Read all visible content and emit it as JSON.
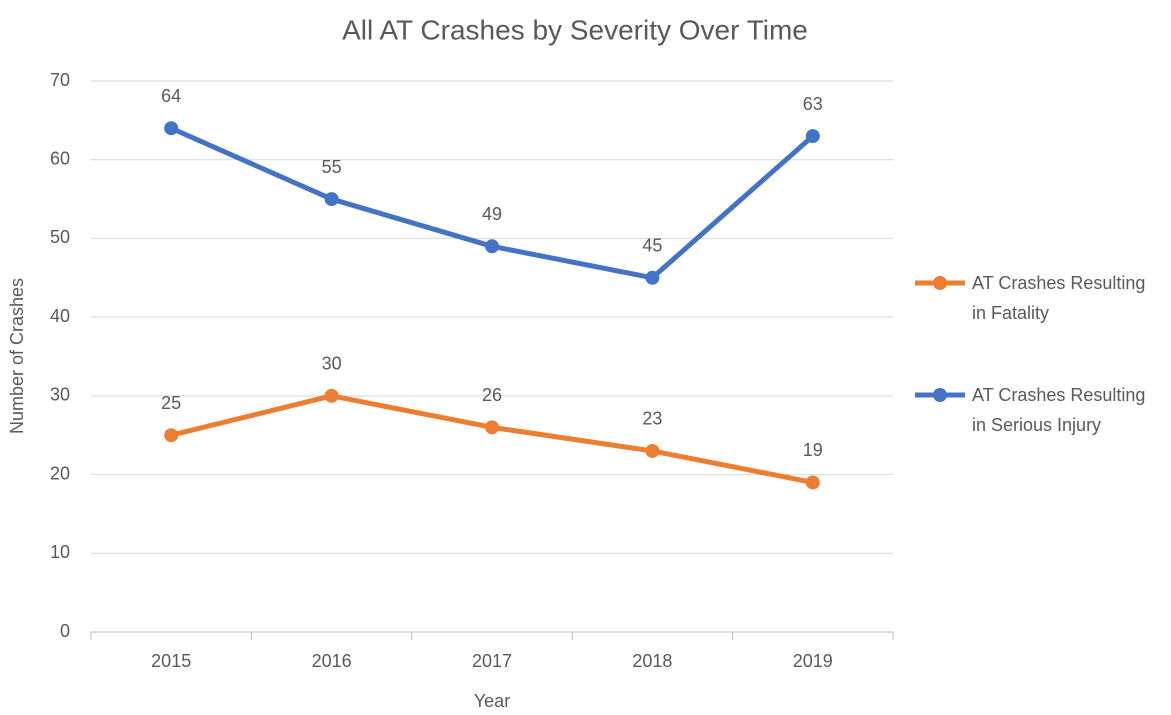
{
  "chart_data": {
    "type": "line",
    "title": "All AT Crashes by Severity Over Time",
    "x_label": "Year",
    "y_label": "Number of Crashes",
    "categories": [
      "2015",
      "2016",
      "2017",
      "2018",
      "2019"
    ],
    "series": [
      {
        "name": "AT Crashes Resulting in Fatality",
        "color": "#ED7D31",
        "values": [
          25,
          30,
          26,
          23,
          19
        ]
      },
      {
        "name": "AT Crashes Resulting in Serious Injury",
        "color": "#4472C4",
        "values": [
          64,
          55,
          49,
          45,
          63
        ]
      }
    ],
    "ylim": [
      0,
      70
    ],
    "yticks": [
      0,
      10,
      20,
      30,
      40,
      50,
      60,
      70
    ],
    "grid": true,
    "legend": "right"
  }
}
